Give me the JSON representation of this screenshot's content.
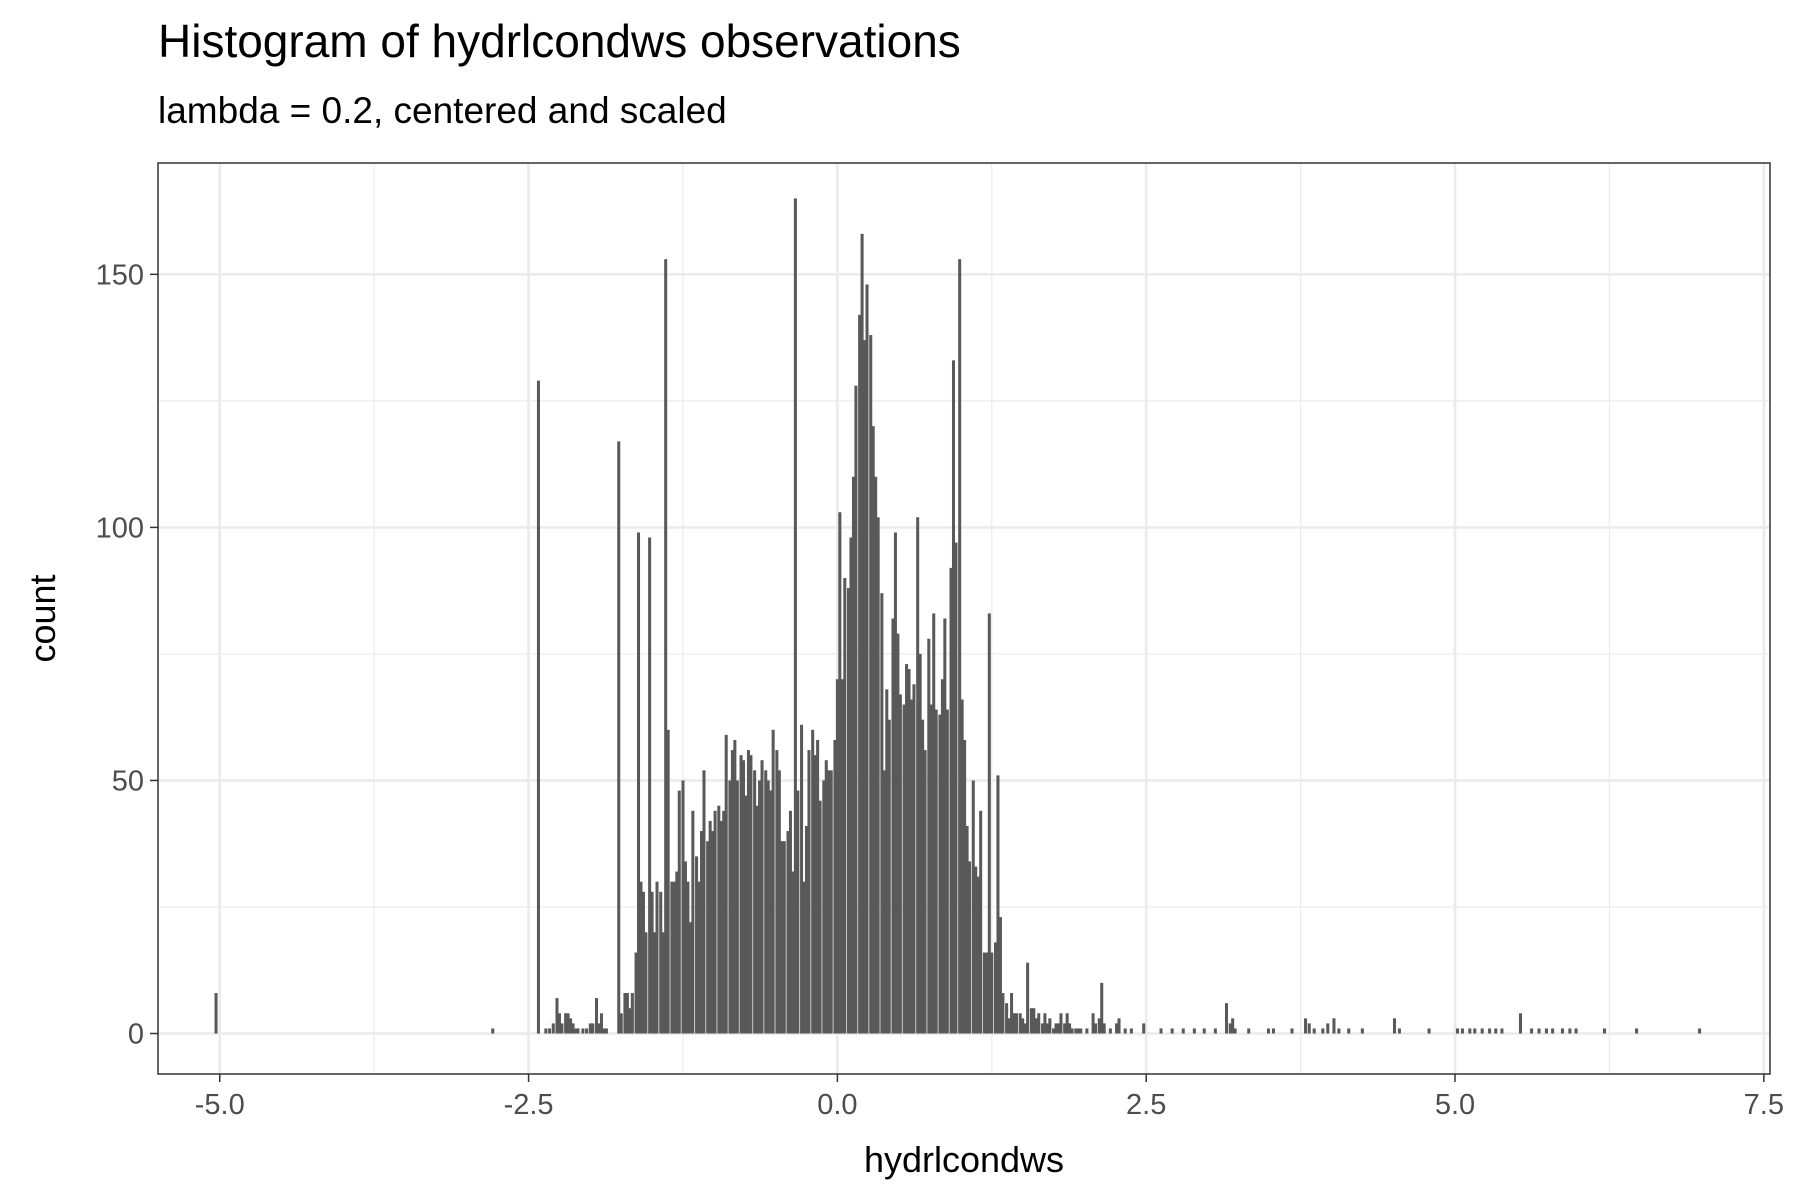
{
  "chart_data": {
    "type": "bar",
    "title": "Histogram of hydrlcondws observations",
    "subtitle": "lambda = 0.2, centered and scaled",
    "xlabel": "hydrlcondws",
    "ylabel": "count",
    "xlim": [
      -5.5,
      7.55
    ],
    "ylim": [
      -8,
      172
    ],
    "x_ticks": [
      -5.0,
      -2.5,
      0.0,
      2.5,
      5.0,
      7.5
    ],
    "x_tick_labels": [
      "-5.0",
      "-2.5",
      "0.0",
      "2.5",
      "5.0",
      "7.5"
    ],
    "y_ticks": [
      0,
      50,
      100,
      150
    ],
    "y_tick_labels": [
      "0",
      "50",
      "100",
      "150"
    ],
    "grid": true,
    "bar_color": "#595959",
    "bin_width": 0.0245,
    "bins": [
      [
        -5.03,
        8
      ],
      [
        -2.79,
        1
      ],
      [
        -2.42,
        129
      ],
      [
        -2.36,
        1
      ],
      [
        -2.33,
        1
      ],
      [
        -2.3,
        2
      ],
      [
        -2.27,
        7
      ],
      [
        -2.25,
        4
      ],
      [
        -2.23,
        2
      ],
      [
        -2.2,
        4
      ],
      [
        -2.18,
        4
      ],
      [
        -2.16,
        3
      ],
      [
        -2.14,
        2
      ],
      [
        -2.12,
        1
      ],
      [
        -2.1,
        1
      ],
      [
        -2.06,
        1
      ],
      [
        -2.03,
        1
      ],
      [
        -2.0,
        2
      ],
      [
        -1.98,
        2
      ],
      [
        -1.95,
        7
      ],
      [
        -1.93,
        2
      ],
      [
        -1.91,
        4
      ],
      [
        -1.89,
        1
      ],
      [
        -1.87,
        1
      ],
      [
        -1.77,
        117
      ],
      [
        -1.75,
        4
      ],
      [
        -1.72,
        8
      ],
      [
        -1.7,
        8
      ],
      [
        -1.68,
        5
      ],
      [
        -1.66,
        8
      ],
      [
        -1.63,
        16
      ],
      [
        -1.61,
        99
      ],
      [
        -1.59,
        30
      ],
      [
        -1.57,
        28
      ],
      [
        -1.55,
        20
      ],
      [
        -1.52,
        98
      ],
      [
        -1.5,
        28
      ],
      [
        -1.48,
        20
      ],
      [
        -1.46,
        30
      ],
      [
        -1.43,
        28
      ],
      [
        -1.41,
        20
      ],
      [
        -1.39,
        153
      ],
      [
        -1.37,
        60
      ],
      [
        -1.34,
        30
      ],
      [
        -1.32,
        30
      ],
      [
        -1.3,
        32
      ],
      [
        -1.28,
        48
      ],
      [
        -1.25,
        50
      ],
      [
        -1.23,
        34
      ],
      [
        -1.21,
        30
      ],
      [
        -1.19,
        22
      ],
      [
        -1.17,
        44
      ],
      [
        -1.14,
        35
      ],
      [
        -1.12,
        30
      ],
      [
        -1.1,
        40
      ],
      [
        -1.08,
        52
      ],
      [
        -1.05,
        38
      ],
      [
        -1.03,
        42
      ],
      [
        -1.01,
        40
      ],
      [
        -0.99,
        44
      ],
      [
        -0.96,
        45
      ],
      [
        -0.94,
        42
      ],
      [
        -0.92,
        44
      ],
      [
        -0.9,
        59
      ],
      [
        -0.87,
        50
      ],
      [
        -0.85,
        56
      ],
      [
        -0.83,
        58
      ],
      [
        -0.81,
        50
      ],
      [
        -0.78,
        55
      ],
      [
        -0.76,
        54
      ],
      [
        -0.74,
        47
      ],
      [
        -0.72,
        56
      ],
      [
        -0.7,
        55
      ],
      [
        -0.67,
        52
      ],
      [
        -0.65,
        45
      ],
      [
        -0.63,
        50
      ],
      [
        -0.61,
        54
      ],
      [
        -0.58,
        52
      ],
      [
        -0.56,
        50
      ],
      [
        -0.54,
        48
      ],
      [
        -0.52,
        60
      ],
      [
        -0.49,
        56
      ],
      [
        -0.47,
        52
      ],
      [
        -0.45,
        38
      ],
      [
        -0.43,
        38
      ],
      [
        -0.4,
        40
      ],
      [
        -0.38,
        44
      ],
      [
        -0.36,
        32
      ],
      [
        -0.34,
        165
      ],
      [
        -0.32,
        48
      ],
      [
        -0.29,
        61
      ],
      [
        -0.27,
        30
      ],
      [
        -0.25,
        41
      ],
      [
        -0.23,
        56
      ],
      [
        -0.2,
        60
      ],
      [
        -0.18,
        55
      ],
      [
        -0.16,
        58
      ],
      [
        -0.14,
        46
      ],
      [
        -0.11,
        50
      ],
      [
        -0.09,
        54
      ],
      [
        -0.07,
        52
      ],
      [
        -0.05,
        52
      ],
      [
        -0.02,
        58
      ],
      [
        0.0,
        70
      ],
      [
        0.02,
        103
      ],
      [
        0.04,
        70
      ],
      [
        0.06,
        90
      ],
      [
        0.09,
        88
      ],
      [
        0.11,
        98
      ],
      [
        0.13,
        110
      ],
      [
        0.15,
        128
      ],
      [
        0.18,
        142
      ],
      [
        0.2,
        158
      ],
      [
        0.22,
        137
      ],
      [
        0.24,
        148
      ],
      [
        0.27,
        138
      ],
      [
        0.29,
        120
      ],
      [
        0.31,
        110
      ],
      [
        0.33,
        102
      ],
      [
        0.36,
        87
      ],
      [
        0.38,
        52
      ],
      [
        0.4,
        68
      ],
      [
        0.42,
        62
      ],
      [
        0.45,
        82
      ],
      [
        0.47,
        99
      ],
      [
        0.49,
        79
      ],
      [
        0.51,
        67
      ],
      [
        0.54,
        65
      ],
      [
        0.56,
        73
      ],
      [
        0.58,
        72
      ],
      [
        0.6,
        66
      ],
      [
        0.62,
        69
      ],
      [
        0.65,
        102
      ],
      [
        0.67,
        75
      ],
      [
        0.69,
        62
      ],
      [
        0.71,
        56
      ],
      [
        0.74,
        78
      ],
      [
        0.76,
        65
      ],
      [
        0.78,
        83
      ],
      [
        0.8,
        64
      ],
      [
        0.83,
        63
      ],
      [
        0.85,
        70
      ],
      [
        0.87,
        82
      ],
      [
        0.89,
        64
      ],
      [
        0.92,
        92
      ],
      [
        0.94,
        133
      ],
      [
        0.96,
        97
      ],
      [
        0.99,
        153
      ],
      [
        1.01,
        66
      ],
      [
        1.03,
        58
      ],
      [
        1.05,
        41
      ],
      [
        1.07,
        34
      ],
      [
        1.1,
        50
      ],
      [
        1.12,
        33
      ],
      [
        1.14,
        31
      ],
      [
        1.16,
        44
      ],
      [
        1.19,
        16
      ],
      [
        1.21,
        16
      ],
      [
        1.23,
        83
      ],
      [
        1.25,
        16
      ],
      [
        1.28,
        18
      ],
      [
        1.3,
        51
      ],
      [
        1.32,
        23
      ],
      [
        1.34,
        8
      ],
      [
        1.37,
        6
      ],
      [
        1.39,
        3
      ],
      [
        1.41,
        8
      ],
      [
        1.43,
        4
      ],
      [
        1.45,
        4
      ],
      [
        1.48,
        4
      ],
      [
        1.5,
        3
      ],
      [
        1.52,
        2
      ],
      [
        1.54,
        14
      ],
      [
        1.57,
        5
      ],
      [
        1.59,
        5
      ],
      [
        1.61,
        3
      ],
      [
        1.63,
        4
      ],
      [
        1.66,
        2
      ],
      [
        1.68,
        4
      ],
      [
        1.7,
        2
      ],
      [
        1.72,
        3
      ],
      [
        1.75,
        1
      ],
      [
        1.77,
        2
      ],
      [
        1.79,
        2
      ],
      [
        1.81,
        4
      ],
      [
        1.84,
        2
      ],
      [
        1.86,
        4
      ],
      [
        1.88,
        2
      ],
      [
        1.9,
        1
      ],
      [
        1.93,
        1
      ],
      [
        1.95,
        1
      ],
      [
        1.97,
        1
      ],
      [
        2.02,
        1
      ],
      [
        2.07,
        4
      ],
      [
        2.09,
        2
      ],
      [
        2.12,
        3
      ],
      [
        2.14,
        10
      ],
      [
        2.16,
        2
      ],
      [
        2.21,
        1
      ],
      [
        2.26,
        2
      ],
      [
        2.28,
        3
      ],
      [
        2.33,
        1
      ],
      [
        2.38,
        1
      ],
      [
        2.48,
        2
      ],
      [
        2.62,
        1
      ],
      [
        2.71,
        1
      ],
      [
        2.8,
        1
      ],
      [
        2.89,
        1
      ],
      [
        2.97,
        1
      ],
      [
        3.06,
        1
      ],
      [
        3.15,
        6
      ],
      [
        3.18,
        2
      ],
      [
        3.2,
        3
      ],
      [
        3.22,
        1
      ],
      [
        3.33,
        1
      ],
      [
        3.49,
        1
      ],
      [
        3.53,
        1
      ],
      [
        3.68,
        1
      ],
      [
        3.79,
        3
      ],
      [
        3.82,
        2
      ],
      [
        3.86,
        1
      ],
      [
        3.93,
        1
      ],
      [
        3.97,
        2
      ],
      [
        4.02,
        3
      ],
      [
        4.06,
        1
      ],
      [
        4.14,
        1
      ],
      [
        4.25,
        1
      ],
      [
        4.51,
        3
      ],
      [
        4.55,
        1
      ],
      [
        4.79,
        1
      ],
      [
        5.02,
        1
      ],
      [
        5.06,
        1
      ],
      [
        5.12,
        1
      ],
      [
        5.16,
        1
      ],
      [
        5.22,
        1
      ],
      [
        5.28,
        1
      ],
      [
        5.33,
        1
      ],
      [
        5.38,
        1
      ],
      [
        5.53,
        4
      ],
      [
        5.62,
        1
      ],
      [
        5.68,
        1
      ],
      [
        5.74,
        1
      ],
      [
        5.79,
        1
      ],
      [
        5.87,
        1
      ],
      [
        5.93,
        1
      ],
      [
        5.98,
        1
      ],
      [
        6.21,
        1
      ],
      [
        6.47,
        1
      ],
      [
        6.98,
        1
      ]
    ]
  }
}
